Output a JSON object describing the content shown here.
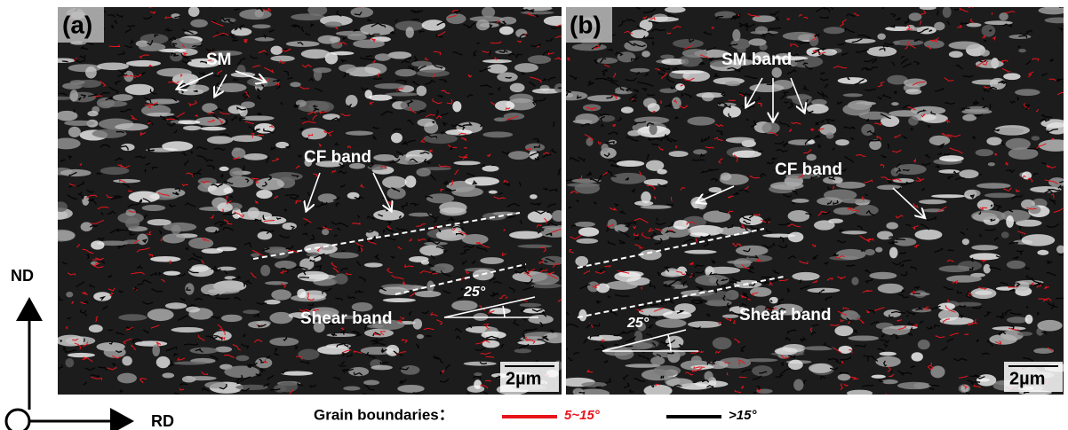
{
  "panels": [
    {
      "label": "(a)",
      "annotations": [
        "SM",
        "CF band",
        "Shear band"
      ],
      "angle": "25°",
      "scale_bar": "2µm"
    },
    {
      "label": "(b)",
      "annotations": [
        "SM band",
        "CF band",
        "Shear band"
      ],
      "angle": "25°",
      "scale_bar": "2µm"
    }
  ],
  "axes": {
    "vertical": "ND",
    "horizontal": "RD"
  },
  "legend": {
    "title": "Grain boundaries：",
    "items": [
      {
        "label": "5~15°",
        "color": "#e8141b"
      },
      {
        "label": ">15°",
        "color": "#000000"
      }
    ]
  }
}
